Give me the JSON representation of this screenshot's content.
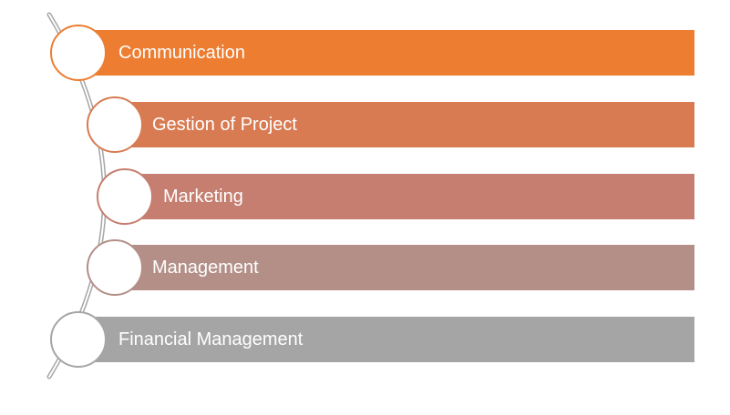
{
  "items": [
    {
      "label": "Communication",
      "color": "#ed7d31"
    },
    {
      "label": "Gestion of Project",
      "color": "#d87b52"
    },
    {
      "label": "Marketing",
      "color": "#c57e6f"
    },
    {
      "label": "Management",
      "color": "#b38f88"
    },
    {
      "label": "Financial Management",
      "color": "#a5a5a5"
    }
  ],
  "connector_color": "#a6a6a6"
}
